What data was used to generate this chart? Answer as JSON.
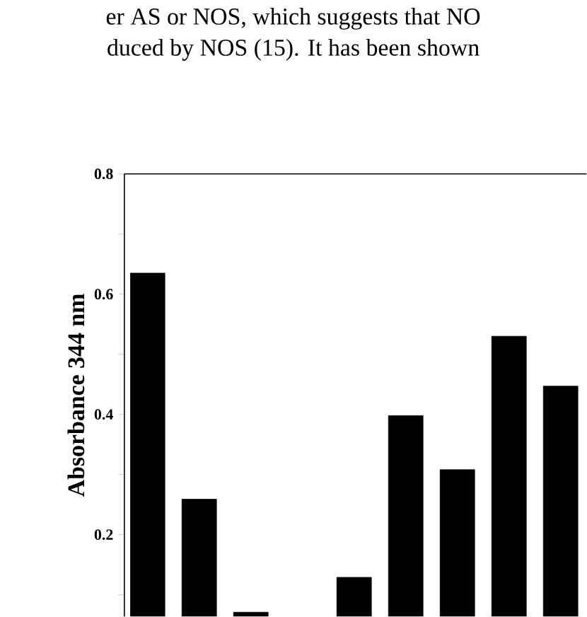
{
  "chart_data": {
    "type": "bar",
    "ylabel": "Absorbance 344 nm",
    "annotations": [
      "er AS or NOS, which suggests that NO",
      "duced by NOS (15). It has been shown"
    ],
    "categories": [
      null,
      null,
      null,
      null,
      null,
      null,
      null,
      null,
      null
    ],
    "values": [
      0.635,
      0.259,
      0.071,
      null,
      0.129,
      0.398,
      0.308,
      0.53,
      0.447
    ],
    "color": "#000000",
    "ylim": [
      0.064,
      0.8
    ],
    "yticks": [
      {
        "value": 0.1,
        "label": null
      },
      0.2,
      {
        "value": 0.3,
        "label": null
      },
      0.4,
      {
        "value": 0.5,
        "label": null
      },
      0.6,
      {
        "value": 0.7,
        "label": null
      },
      0.8
    ]
  }
}
